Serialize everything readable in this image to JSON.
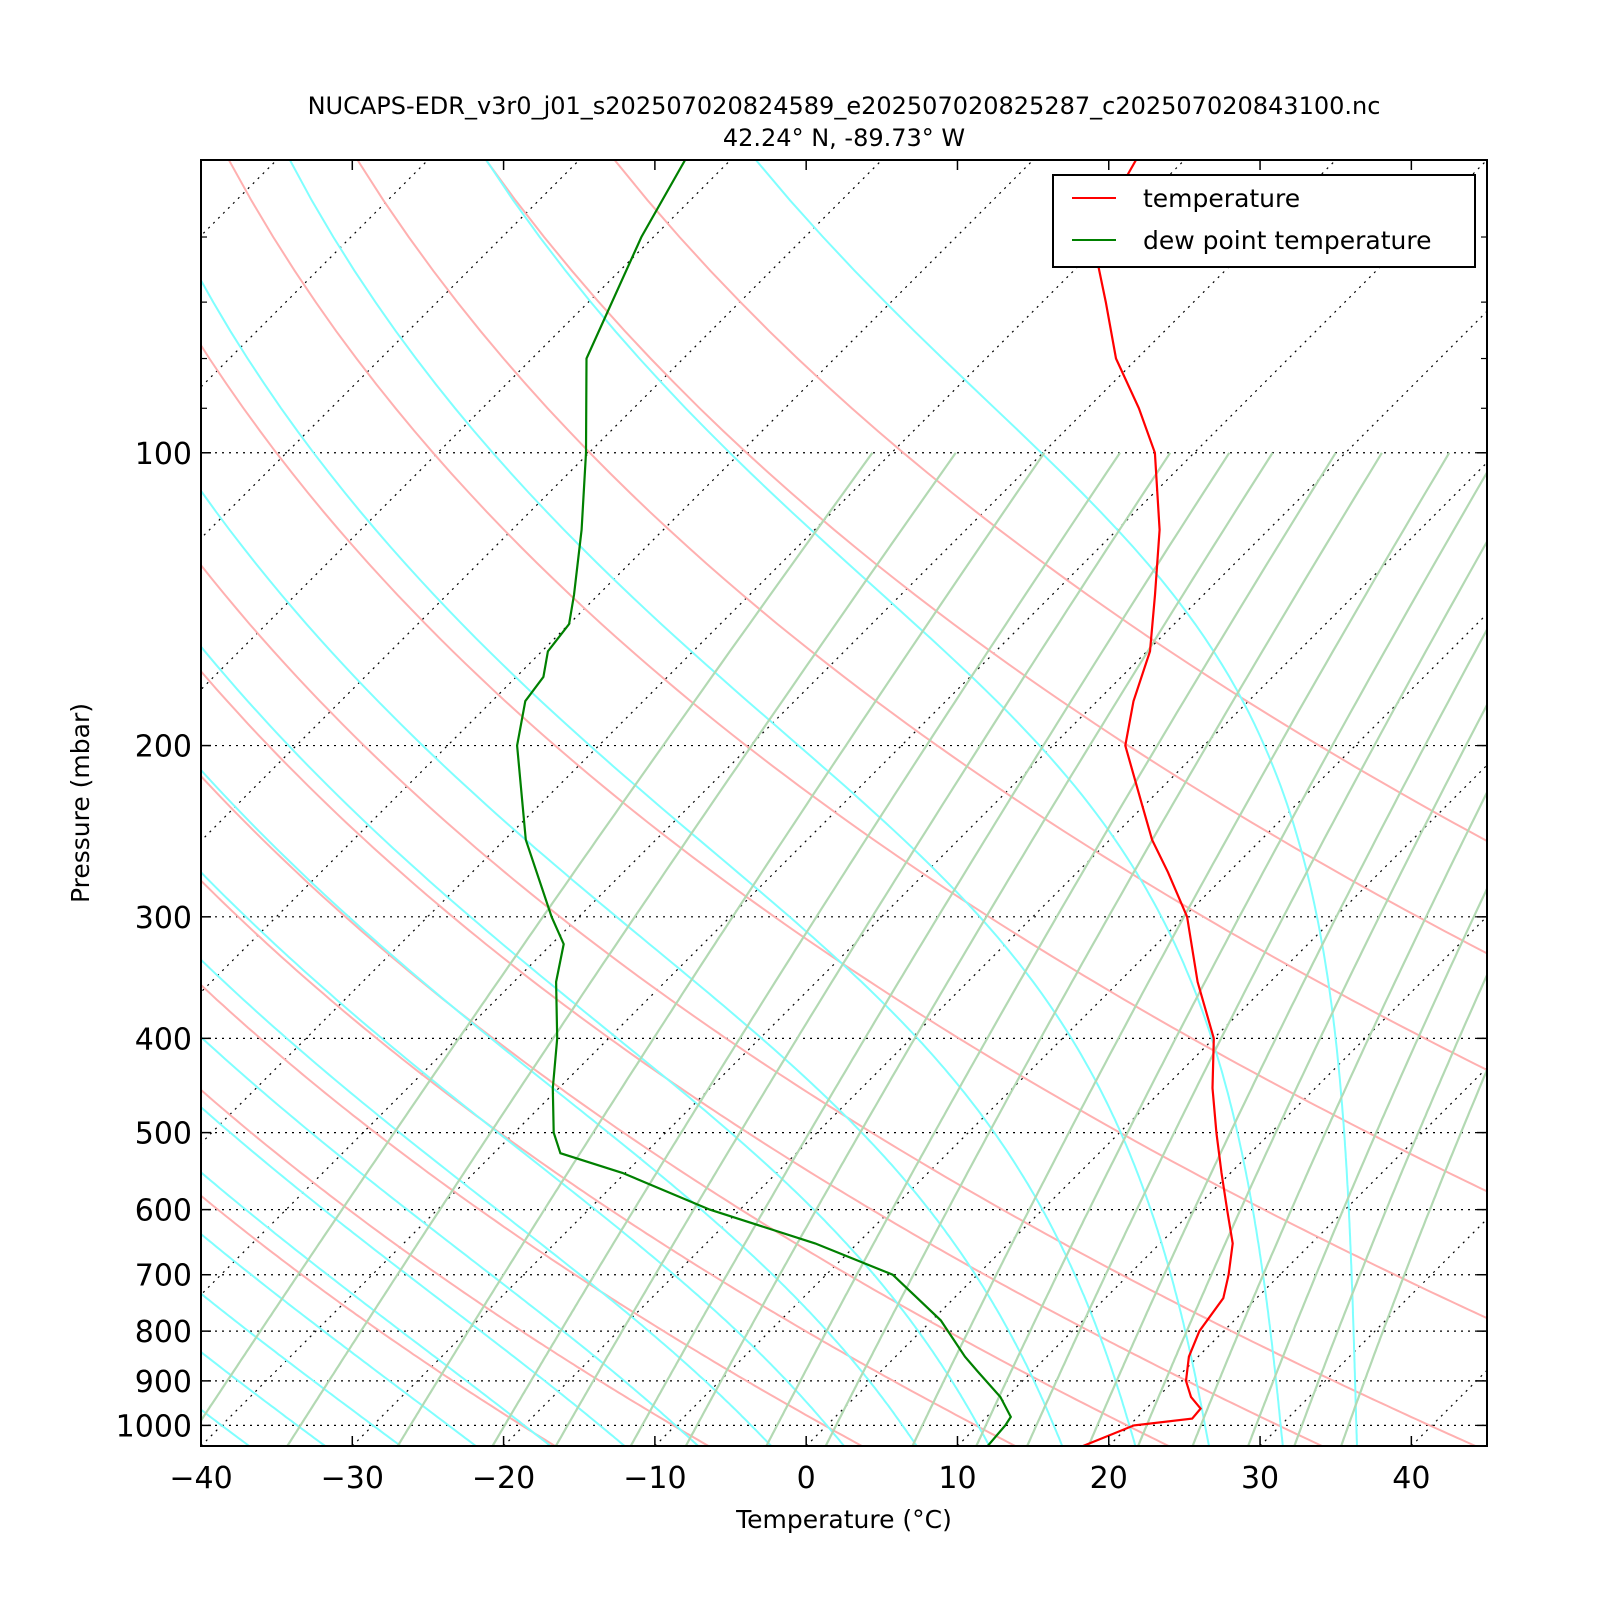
{
  "chart_data": {
    "type": "line",
    "subtype": "skew-T log-P diagram",
    "title": "NUCAPS-EDR_v3r0_j01_s202507020824589_e202507020825287_c202507020843100.nc",
    "subtitle": "42.24° N, -89.73° W",
    "xlabel": "Temperature (°C)",
    "ylabel": "Pressure (mbar)",
    "xlim": [
      -40,
      45
    ],
    "ylim": [
      1050,
      50
    ],
    "y_scale": "log",
    "x_ticks": [
      "−40",
      "−30",
      "−20",
      "−10",
      "0",
      "10",
      "20",
      "30",
      "40"
    ],
    "y_ticks": [
      "100",
      "200",
      "300",
      "400",
      "500",
      "600",
      "700",
      "800",
      "900",
      "1000"
    ],
    "grid": true,
    "legend_position": "top-right",
    "series": [
      {
        "name": "temperature",
        "color": "#ff0000",
        "points": [
          [
            1050,
            18.3
          ],
          [
            1000,
            20.3
          ],
          [
            984,
            23.7
          ],
          [
            961,
            23.6
          ],
          [
            935,
            22.2
          ],
          [
            900,
            20.8
          ],
          [
            850,
            19.4
          ],
          [
            800,
            18.4
          ],
          [
            740,
            17.8
          ],
          [
            700,
            16.6
          ],
          [
            650,
            14.8
          ],
          [
            600,
            12.2
          ],
          [
            550,
            9.4
          ],
          [
            500,
            6.4
          ],
          [
            450,
            3.2
          ],
          [
            400,
            0
          ],
          [
            350,
            -4.8
          ],
          [
            300,
            -9.8
          ],
          [
            270,
            -14.0
          ],
          [
            250,
            -17.2
          ],
          [
            230,
            -20.2
          ],
          [
            200,
            -25.2
          ],
          [
            180,
            -27.6
          ],
          [
            160,
            -29.8
          ],
          [
            140,
            -33.2
          ],
          [
            120,
            -37.2
          ],
          [
            100,
            -42.6
          ],
          [
            90,
            -46.6
          ],
          [
            80,
            -51.4
          ],
          [
            70,
            -55.8
          ],
          [
            60,
            -61.0
          ],
          [
            50,
            -63.2
          ]
        ]
      },
      {
        "name": "dew point temperature",
        "color": "#008000",
        "points": [
          [
            1050,
            12.0
          ],
          [
            1000,
            11.8
          ],
          [
            980,
            11.6
          ],
          [
            935,
            9.6
          ],
          [
            880,
            6.4
          ],
          [
            850,
            4.6
          ],
          [
            780,
            0.6
          ],
          [
            700,
            -5.6
          ],
          [
            650,
            -12.8
          ],
          [
            600,
            -22.0
          ],
          [
            550,
            -30.2
          ],
          [
            525,
            -35.6
          ],
          [
            500,
            -37.4
          ],
          [
            450,
            -40.4
          ],
          [
            400,
            -43.4
          ],
          [
            350,
            -47.2
          ],
          [
            320,
            -49.2
          ],
          [
            300,
            -51.8
          ],
          [
            250,
            -58.6
          ],
          [
            200,
            -65.4
          ],
          [
            180,
            -67.8
          ],
          [
            170,
            -68.2
          ],
          [
            160,
            -69.6
          ],
          [
            150,
            -70.0
          ],
          [
            140,
            -71.6
          ],
          [
            120,
            -75.4
          ],
          [
            100,
            -80.2
          ],
          [
            80,
            -86.4
          ],
          [
            60,
            -90.8
          ],
          [
            50,
            -93.0
          ]
        ]
      }
    ],
    "reference_lines": {
      "dry_adiabats": {
        "color": "#ffb0b0",
        "theta_K": [
          253,
          263,
          273,
          283,
          293,
          303,
          313,
          333,
          353,
          373,
          393,
          413
        ]
      },
      "moist_adiabats": {
        "color": "#7fffff",
        "theta_w_C": [
          -40,
          -35,
          -30,
          -25,
          -20,
          -15,
          -10,
          -5,
          0,
          5,
          10,
          15,
          20,
          25,
          30,
          35
        ]
      },
      "mixing_ratio_lines": {
        "color": "#b3d9b3",
        "w_g_per_kg": [
          0.1,
          0.2,
          0.4,
          0.7,
          1,
          1.5,
          2,
          3,
          4,
          6,
          8,
          10,
          13,
          16,
          20,
          25,
          30,
          36
        ]
      },
      "isotherms": {
        "style": "dotted",
        "color": "#000000"
      }
    }
  }
}
